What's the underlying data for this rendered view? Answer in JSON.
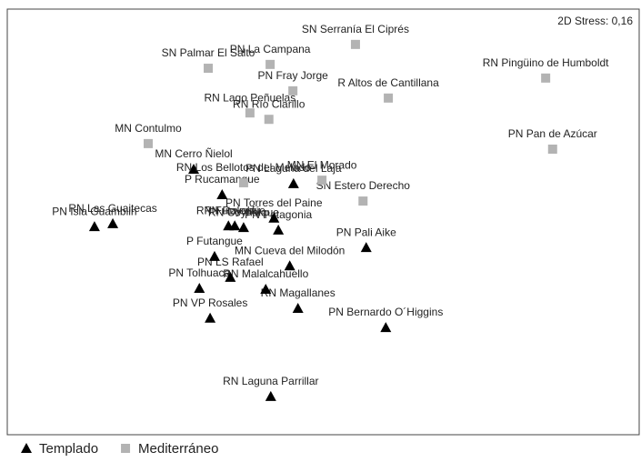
{
  "chart_data": {
    "type": "scatter",
    "annotation": "2D Stress: 0,16",
    "xlim": [
      0,
      100
    ],
    "ylim": [
      0,
      100
    ],
    "series": [
      {
        "name": "Templado",
        "color": "#000000",
        "marker": "triangle",
        "labels": [
          "MN Cerro Ñielol",
          "P Rucamanque",
          "PN Laguna del Laja",
          "RN Las Guaitecas",
          "PN Isla Guamblin",
          "PN Torres del Paine",
          "RN Futaleufú",
          "PN Puyehue",
          "RN Coyhaique",
          "PN Patagonia",
          "PN Pali Aike",
          "P Futangue",
          "MN Cueva del Milodón",
          "PN LS Rafael",
          "PN Tolhuaca",
          "RN Malalcahuello",
          "RN Magallanes",
          "PN VP Rosales",
          "PN Bernardo O´Higgins",
          "RN Laguna Parrillar"
        ],
        "x": [
          29.5,
          34.0,
          45.3,
          16.7,
          13.8,
          42.2,
          35.0,
          36.0,
          37.4,
          42.9,
          56.8,
          32.8,
          44.7,
          35.3,
          30.4,
          40.9,
          46.0,
          32.1,
          59.9,
          41.7
        ],
        "y": [
          62.4,
          56.4,
          59.0,
          49.6,
          48.9,
          50.9,
          49.1,
          49.1,
          48.7,
          48.1,
          44.0,
          41.9,
          39.7,
          37.0,
          34.4,
          34.2,
          29.7,
          27.4,
          25.2,
          9.0
        ]
      },
      {
        "name": "Mediterráneo",
        "color": "#b3b3b3",
        "marker": "square",
        "labels": [
          "SN Serranía El Ciprés",
          "SN Palmar El Salto",
          "PN La Campana",
          "PN Fray Jorge",
          "R Altos de Cantillana",
          "RN Pingüino de Humboldt",
          "RN Lago Peñuelas",
          "RN Río Clarillo",
          "MN Contulmo",
          "PN Pan de Azúcar",
          "RN Los Bellotos del Melado",
          "MN El Morado",
          "SN Estero Derecho"
        ],
        "x": [
          55.1,
          31.8,
          41.6,
          45.2,
          60.3,
          85.2,
          38.4,
          41.4,
          22.3,
          86.3,
          37.4,
          49.8,
          56.3
        ],
        "y": [
          91.7,
          86.1,
          87.0,
          80.8,
          79.1,
          83.8,
          75.6,
          74.1,
          68.4,
          67.1,
          59.2,
          59.8,
          54.9
        ]
      }
    ]
  }
}
